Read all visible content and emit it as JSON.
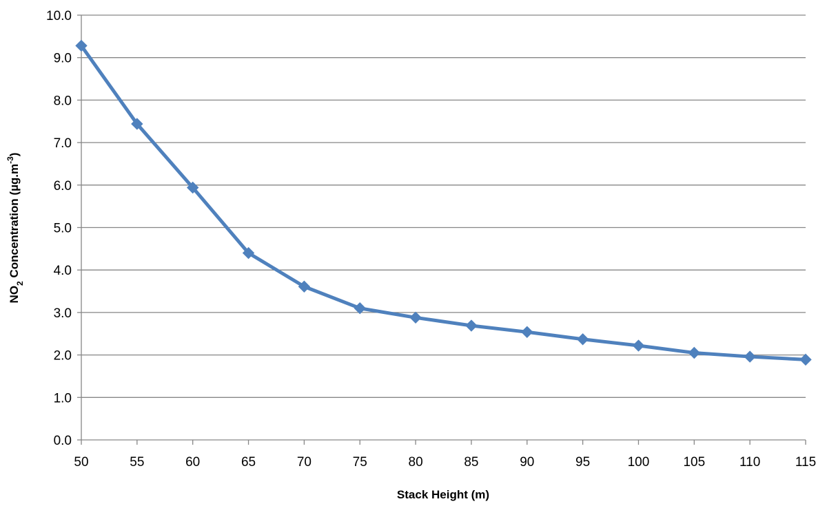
{
  "chart_data": {
    "type": "line",
    "title": "",
    "xlabel": "Stack Height (m)",
    "ylabel": {
      "prefix": "NO",
      "subscript": "2",
      "middle": " Concentration (µg.m",
      "superscript": "-3",
      "suffix": ")"
    },
    "x": [
      50,
      55,
      60,
      65,
      70,
      75,
      80,
      85,
      90,
      95,
      100,
      105,
      110,
      115
    ],
    "x_tick_labels": [
      "50",
      "55",
      "60",
      "65",
      "70",
      "75",
      "80",
      "85",
      "90",
      "95",
      "100",
      "105",
      "110",
      "115"
    ],
    "y_tick_labels": [
      "0.0",
      "1.0",
      "2.0",
      "3.0",
      "4.0",
      "5.0",
      "6.0",
      "7.0",
      "8.0",
      "9.0",
      "10.0"
    ],
    "ylim": [
      0,
      10
    ],
    "xlim": [
      50,
      115
    ],
    "grid": "horizontal",
    "legend": "none",
    "series": [
      {
        "values": [
          9.28,
          7.44,
          5.94,
          4.4,
          3.61,
          3.1,
          2.88,
          2.69,
          2.54,
          2.37,
          2.22,
          2.05,
          1.96,
          1.89
        ],
        "color": "#4f81bd",
        "marker": "diamond"
      }
    ],
    "colors": {
      "gridline": "#868686",
      "axis": "#868686",
      "line": "#4f81bd"
    }
  }
}
